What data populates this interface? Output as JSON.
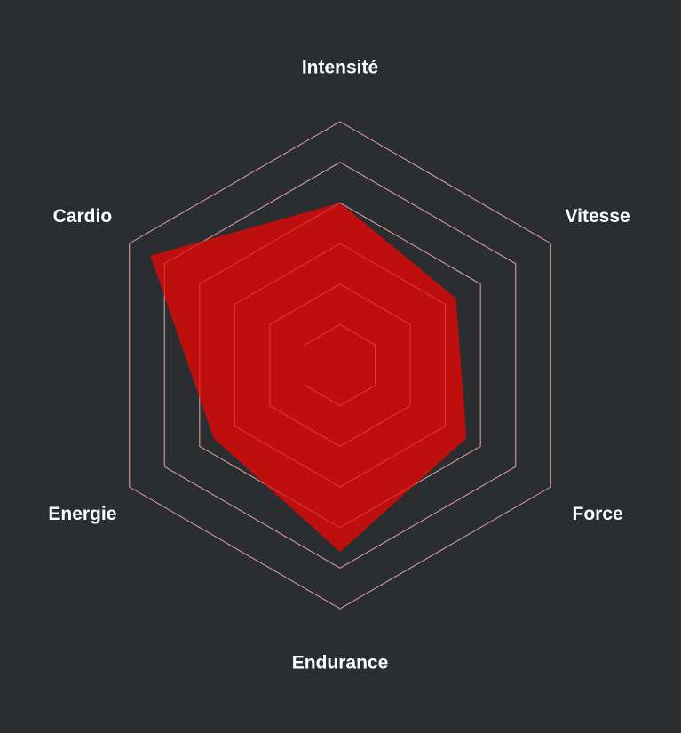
{
  "chart_data": {
    "type": "radar",
    "title": "",
    "axes": [
      "Intensité",
      "Vitesse",
      "Force",
      "Endurance",
      "Energie",
      "Cardio"
    ],
    "series": [
      {
        "values": [
          4.0,
          3.3,
          3.6,
          4.6,
          3.6,
          5.4
        ],
        "color": "#c20e0e"
      }
    ],
    "range": [
      0,
      6
    ],
    "rings": 6,
    "grid": true,
    "colors": {
      "background": "#2a2e31",
      "grid_outer": "#d8d8d8",
      "grid_inner": "#ff6a6a",
      "series_fill": "#c20e0e",
      "label": "#ffffff"
    }
  }
}
